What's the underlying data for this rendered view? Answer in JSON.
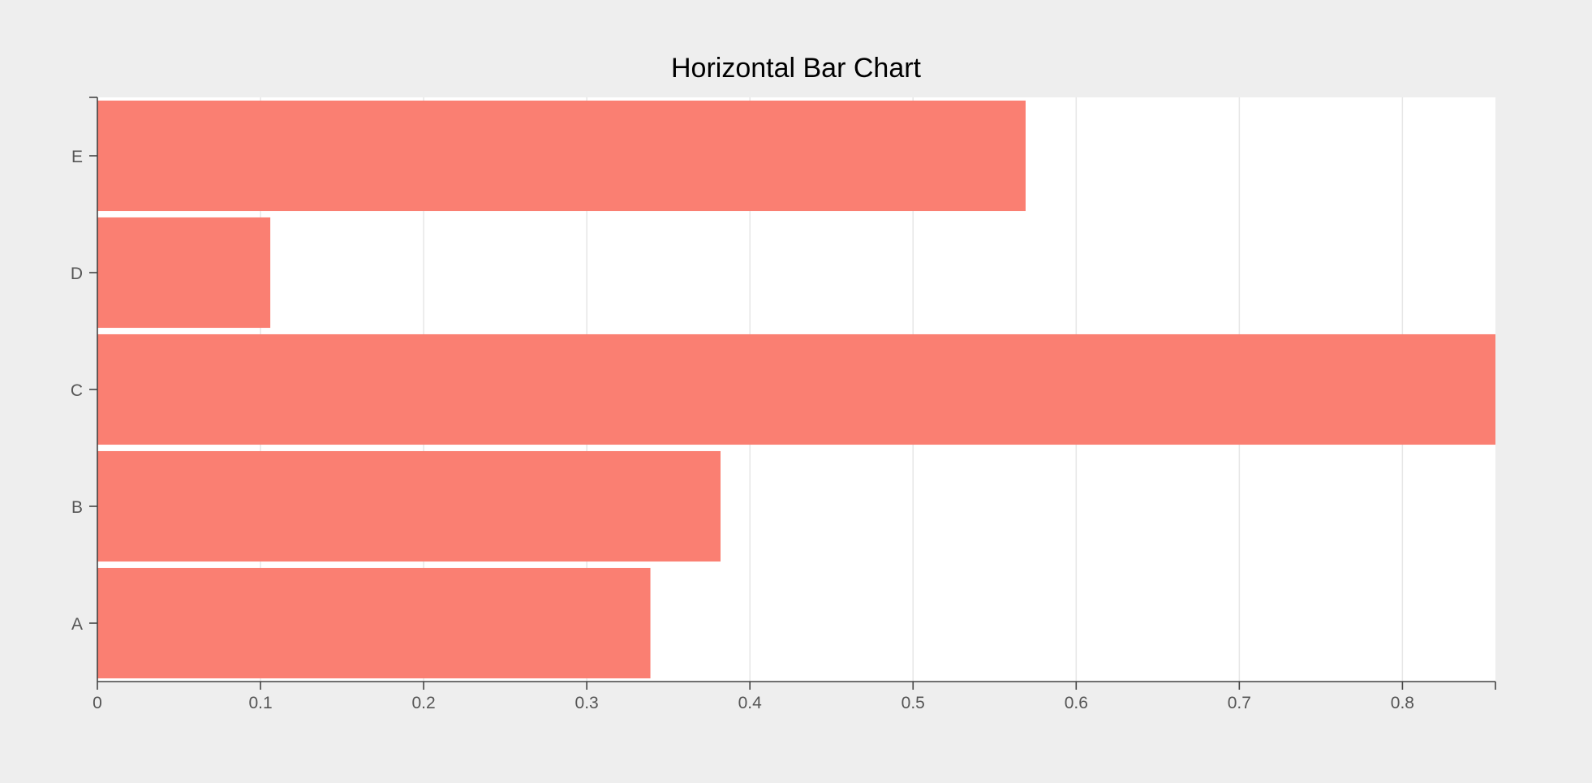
{
  "chart_data": {
    "type": "bar",
    "orientation": "horizontal",
    "title": "Horizontal Bar Chart",
    "xlabel": "",
    "ylabel": "",
    "categories": [
      "A",
      "B",
      "C",
      "D",
      "E"
    ],
    "values": [
      0.339,
      0.382,
      0.857,
      0.106,
      0.569
    ],
    "xlim": [
      0,
      0.857
    ],
    "x_ticks": [
      "0",
      "0.1",
      "0.2",
      "0.3",
      "0.4",
      "0.5",
      "0.6",
      "0.7",
      "0.8"
    ],
    "x_tick_values": [
      0,
      0.1,
      0.2,
      0.3,
      0.4,
      0.5,
      0.6,
      0.7,
      0.8
    ],
    "grid": true,
    "legend": "none",
    "colors": {
      "bar": "#fa7f72",
      "background": "#eeeeee",
      "plot_background": "#ffffff",
      "grid": "#e6e6e6"
    }
  }
}
